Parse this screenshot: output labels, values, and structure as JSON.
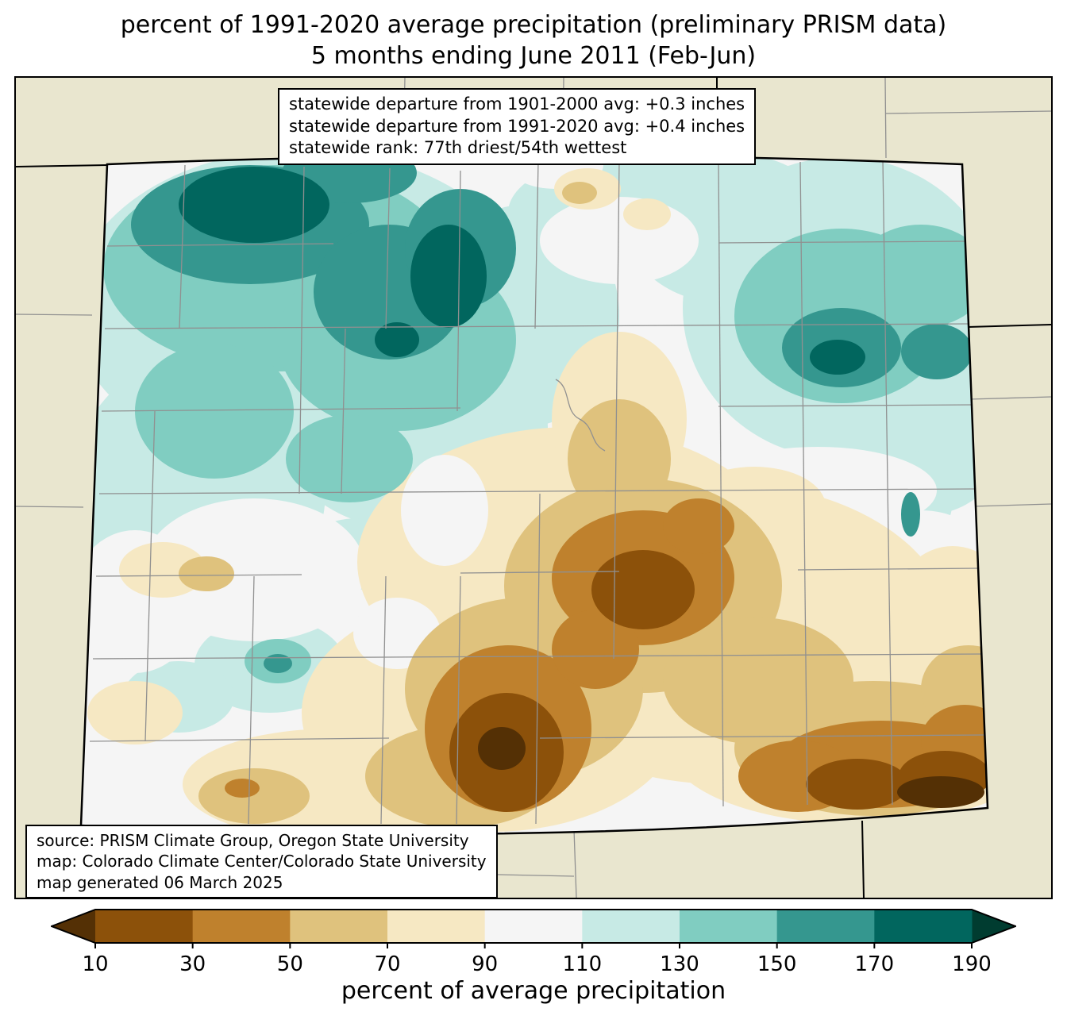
{
  "title": {
    "line1": "percent of 1991-2020 average precipitation (preliminary PRISM data)",
    "line2": "5 months ending June 2011 (Feb-Jun)"
  },
  "stats_box": {
    "line1": "statewide departure from 1901-2000 avg: +0.3 inches",
    "line2": "statewide departure from 1991-2020 avg: +0.4 inches",
    "line3": "statewide rank: 77th driest/54th wettest"
  },
  "source_box": {
    "line1": "source: PRISM Climate Group, Oregon State University",
    "line2": "map: Colorado Climate Center/Colorado State University",
    "line3": "map generated 06 March 2025"
  },
  "colorbar": {
    "label": "percent of average precipitation",
    "ticks": [
      "10",
      "30",
      "50",
      "70",
      "90",
      "110",
      "130",
      "150",
      "170",
      "190"
    ],
    "colors": [
      "#543005",
      "#8c510a",
      "#bf812d",
      "#dfc27d",
      "#f6e8c3",
      "#f5f5f5",
      "#c7eae5",
      "#80cdc1",
      "#35978f",
      "#01665e",
      "#003c30"
    ]
  },
  "map": {
    "region": "Colorado",
    "background_color": "#e9e6cf",
    "county_line_color": "#909090",
    "state_border_color": "#000000",
    "neutral_color": "#f5f5f5"
  }
}
